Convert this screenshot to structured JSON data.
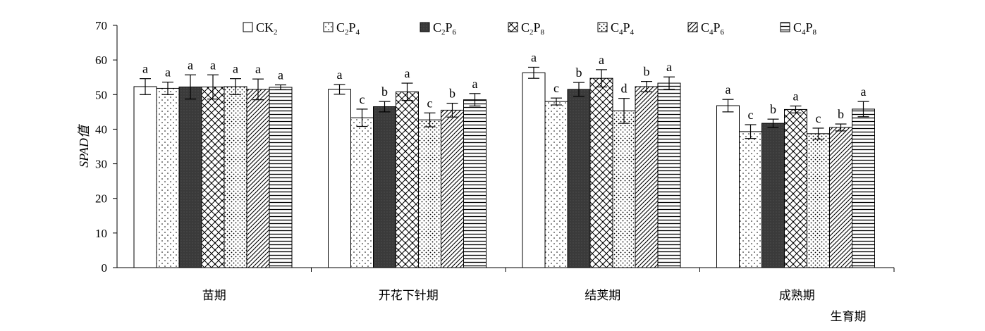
{
  "chart_data": {
    "type": "bar",
    "ylabel": "SPAD值",
    "xlabel": "生育期",
    "ylim": [
      0,
      70
    ],
    "yticks": [
      0,
      10,
      20,
      30,
      40,
      50,
      60,
      70
    ],
    "grid": false,
    "legend_position": "top",
    "categories": [
      "苗期",
      "开花下针期",
      "结荚期",
      "成熟期"
    ],
    "series": [
      {
        "name": "CK2",
        "sub": "2",
        "base": "CK",
        "values": [
          52.3,
          51.5,
          56.3,
          46.8
        ],
        "errors": [
          2.3,
          1.4,
          1.6,
          1.8
        ],
        "letters": [
          "a",
          "a",
          "a",
          "a"
        ],
        "pattern": "white"
      },
      {
        "name": "C2P4",
        "pattern": "dots-sparse",
        "values": [
          51.8,
          43.3,
          48.0,
          39.3
        ],
        "errors": [
          1.8,
          2.5,
          1.0,
          2.0
        ],
        "letters": [
          "a",
          "c",
          "c",
          "c"
        ]
      },
      {
        "name": "C2P6",
        "pattern": "dark",
        "values": [
          52.2,
          46.5,
          51.5,
          41.7
        ],
        "errors": [
          3.5,
          1.5,
          2.0,
          1.2
        ],
        "letters": [
          "a",
          "b",
          "b",
          "b"
        ]
      },
      {
        "name": "C2P8",
        "pattern": "crosshatch",
        "values": [
          52.2,
          50.8,
          54.7,
          45.7
        ],
        "errors": [
          3.5,
          2.5,
          2.5,
          1.0
        ],
        "letters": [
          "a",
          "a",
          "a",
          "a"
        ]
      },
      {
        "name": "C4P4",
        "pattern": "dots-dense",
        "values": [
          52.3,
          42.7,
          45.3,
          38.7
        ],
        "errors": [
          2.3,
          2.0,
          3.6,
          1.6
        ],
        "letters": [
          "a",
          "c",
          "d",
          "c"
        ]
      },
      {
        "name": "C4P6",
        "pattern": "diagonal",
        "values": [
          51.5,
          45.5,
          52.3,
          40.5
        ],
        "errors": [
          3.0,
          2.0,
          1.5,
          1.0
        ],
        "letters": [
          "a",
          "b",
          "b",
          "b"
        ]
      },
      {
        "name": "C4P8",
        "pattern": "horizontal",
        "values": [
          52.1,
          48.5,
          53.3,
          45.8
        ],
        "errors": [
          0.7,
          1.8,
          1.8,
          2.2
        ],
        "letters": [
          "a",
          "a",
          "a",
          "a"
        ]
      }
    ],
    "legend": [
      {
        "base": "CK",
        "sub1": "2",
        "mid": "",
        "sub2": ""
      },
      {
        "base": "C",
        "sub1": "2",
        "mid": "P",
        "sub2": "4"
      },
      {
        "base": "C",
        "sub1": "2",
        "mid": "P",
        "sub2": "6"
      },
      {
        "base": "C",
        "sub1": "2",
        "mid": "P",
        "sub2": "8"
      },
      {
        "base": "C",
        "sub1": "4",
        "mid": "P",
        "sub2": "4"
      },
      {
        "base": "C",
        "sub1": "4",
        "mid": "P",
        "sub2": "6"
      },
      {
        "base": "C",
        "sub1": "4",
        "mid": "P",
        "sub2": "8"
      }
    ]
  }
}
